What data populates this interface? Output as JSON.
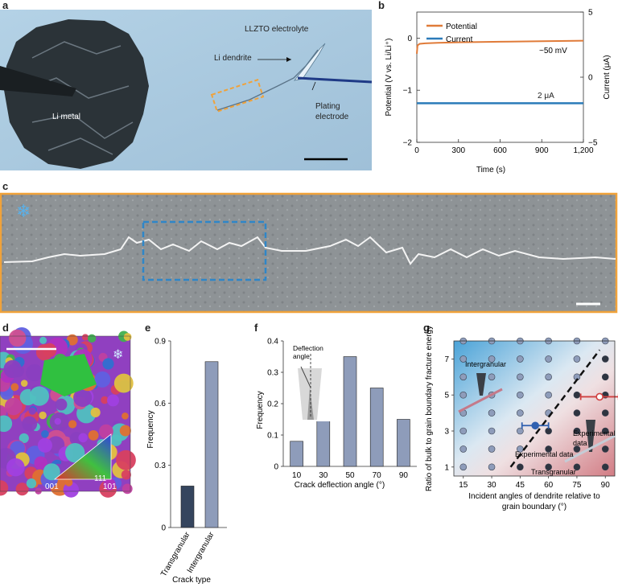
{
  "panels": {
    "a": {
      "letter": "a",
      "labels": {
        "electrolyte": "LLZTO electrolyte",
        "dendrite": "Li dendrite",
        "metal": "Li metal",
        "plating1": "Plating",
        "plating2": "electrode"
      },
      "colors": {
        "background": "#a6c6dc",
        "metal": "#2b3338",
        "box": "#f0a23a"
      }
    },
    "b": {
      "letter": "b",
      "annotations": {
        "potential_value": "~50 mV",
        "current_value": "2 μA"
      }
    },
    "c": {
      "letter": "c",
      "colors": {
        "frame": "#f0a23a",
        "box": "#2f86c8"
      }
    },
    "d": {
      "letter": "d",
      "triangle_labels": {
        "top": "111",
        "left": "001",
        "right": "101"
      }
    },
    "e": {
      "letter": "e"
    },
    "f": {
      "letter": "f",
      "inset": {
        "line1": "Deflection",
        "line2": "angle"
      }
    },
    "g": {
      "letter": "g",
      "annotations": {
        "intergranular": "Intergranular",
        "transgranular": "Transgranular",
        "experimental_top1": "Experimental",
        "experimental_top2": "data",
        "experimental_mid": "Experimental data"
      }
    }
  },
  "chart_data": [
    {
      "id": "b",
      "type": "line",
      "xlabel": "Time (s)",
      "ylabel": "Potential (V vs. Li/Li⁺)",
      "ylabel_right": "Current (μA)",
      "xlim": [
        0,
        1200
      ],
      "ylim": [
        -2,
        0.5
      ],
      "ylim_right": [
        -5,
        5
      ],
      "xticks": [
        "0",
        "300",
        "600",
        "900",
        "1,200"
      ],
      "yticks": [
        "−2",
        "−1",
        "0"
      ],
      "yticks_right": [
        "−5",
        "0",
        "5"
      ],
      "legend_position": "top-left",
      "series": [
        {
          "name": "Potential",
          "axis": "left",
          "color": "#e07b39",
          "x": [
            0,
            5,
            20,
            60,
            150,
            300,
            600,
            900,
            1200
          ],
          "y": [
            -0.3,
            -0.14,
            -0.11,
            -0.1,
            -0.09,
            -0.08,
            -0.07,
            -0.06,
            -0.05
          ]
        },
        {
          "name": "Current",
          "axis": "right",
          "color": "#2b7bb9",
          "x": [
            0,
            300,
            600,
            900,
            1200
          ],
          "y": [
            2,
            2,
            2,
            2,
            2
          ]
        }
      ]
    },
    {
      "id": "e",
      "type": "bar",
      "xlabel": "Crack type",
      "ylabel": "Frequency",
      "categories": [
        "Transgranular",
        "Intergranular"
      ],
      "values": [
        0.2,
        0.8
      ],
      "colors": [
        "#35455e",
        "#8e9cba"
      ],
      "ylim": [
        0,
        0.9
      ],
      "yticks": [
        "0",
        "0.3",
        "0.6",
        "0.9"
      ]
    },
    {
      "id": "f",
      "type": "bar",
      "xlabel": "Crack deflection angle (°)",
      "ylabel": "Frequency",
      "categories": [
        "10",
        "30",
        "50",
        "70",
        "90"
      ],
      "values": [
        0.08,
        0.17,
        0.35,
        0.25,
        0.15
      ],
      "color": "#8e9cba",
      "ylim": [
        0,
        0.4
      ],
      "yticks": [
        "0",
        "0.1",
        "0.2",
        "0.3",
        "0.4"
      ]
    },
    {
      "id": "g",
      "type": "scatter",
      "xlabel_line1": "Incident angles of dendrite relative to",
      "xlabel_line2": "grain boundary (°)",
      "ylabel": "Ratio of bulk to grain boundary fracture energy",
      "xlim": [
        10,
        95
      ],
      "ylim": [
        0.5,
        8
      ],
      "xticks": [
        "15",
        "30",
        "45",
        "60",
        "75",
        "90"
      ],
      "yticks": [
        "1",
        "3",
        "5",
        "7"
      ],
      "grid_x": [
        15,
        30,
        45,
        60,
        75,
        90
      ],
      "grid_y": [
        1,
        2,
        3,
        4,
        5,
        6,
        7,
        8
      ],
      "boundary": [
        [
          40,
          1
        ],
        [
          87,
          7.5
        ]
      ],
      "experimental": [
        {
          "x": 53,
          "y": 3.3,
          "xerr": 7,
          "color": "#3060b0"
        },
        {
          "x": 87,
          "y": 4.9,
          "xerr": 10,
          "color": "#d04040"
        }
      ]
    }
  ]
}
